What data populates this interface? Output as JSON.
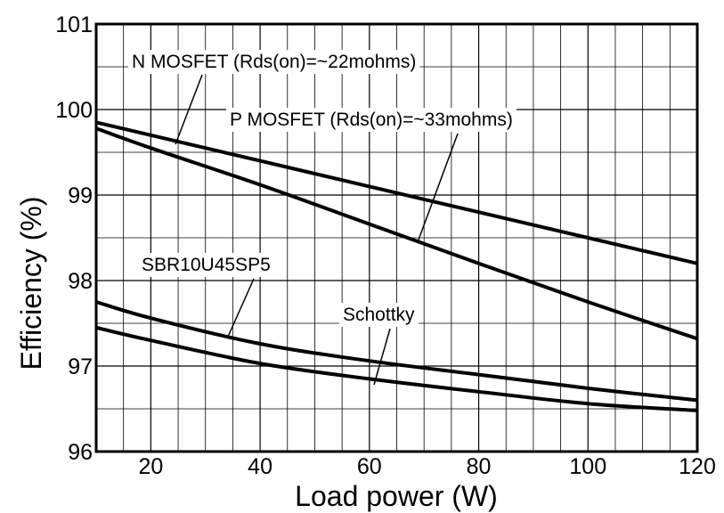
{
  "chart_data": {
    "type": "line",
    "xlabel": "Load power (W)",
    "ylabel": "Efficiency (%)",
    "xlim": [
      10,
      120
    ],
    "ylim": [
      96,
      101
    ],
    "x_ticks": [
      20,
      40,
      60,
      80,
      100,
      120
    ],
    "y_ticks": [
      96,
      97,
      98,
      99,
      100,
      101
    ],
    "x_minor_grid_step": 5,
    "y_minor_grid_step": 0.5,
    "grid": true,
    "series": [
      {
        "name": "N MOSFET (Rds(on)=~22mohms)",
        "x": [
          10,
          20,
          40,
          60,
          80,
          100,
          120
        ],
        "y": [
          99.85,
          99.7,
          99.4,
          99.1,
          98.8,
          98.5,
          98.2
        ]
      },
      {
        "name": "P MOSFET (Rds(on)=~33mohms)",
        "x": [
          10,
          20,
          40,
          60,
          80,
          100,
          120
        ],
        "y": [
          99.78,
          99.55,
          99.12,
          98.66,
          98.2,
          97.75,
          97.32
        ]
      },
      {
        "name": "SBR10U45SP5",
        "x": [
          10,
          20,
          40,
          60,
          80,
          100,
          120
        ],
        "y": [
          97.75,
          97.56,
          97.26,
          97.06,
          96.9,
          96.74,
          96.6
        ]
      },
      {
        "name": "Schottky",
        "x": [
          10,
          20,
          40,
          60,
          80,
          100,
          120
        ],
        "y": [
          97.45,
          97.3,
          97.03,
          96.85,
          96.7,
          96.56,
          96.48
        ]
      }
    ]
  }
}
